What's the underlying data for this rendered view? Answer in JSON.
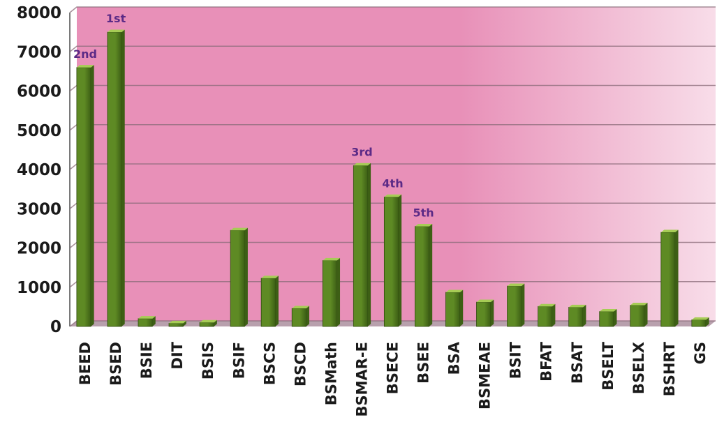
{
  "chart_data": {
    "type": "bar",
    "title": "",
    "xlabel": "",
    "ylabel": "",
    "ylim": [
      0,
      8000
    ],
    "yticks": [
      0,
      1000,
      2000,
      3000,
      4000,
      5000,
      6000,
      7000,
      8000
    ],
    "grid": true,
    "legend": "none",
    "categories": [
      "BEED",
      "BSED",
      "BSIE",
      "DIT",
      "BSIS",
      "BSIF",
      "BSCS",
      "BSCD",
      "BSMath",
      "BSMAR-E",
      "BSECE",
      "BSEE",
      "BSA",
      "BSMEAE",
      "BSIT",
      "BFAT",
      "BSAT",
      "BSELT",
      "BSELX",
      "BSHRT",
      "GS"
    ],
    "values": [
      6600,
      7500,
      200,
      80,
      100,
      2450,
      1230,
      460,
      1680,
      4100,
      3300,
      2550,
      870,
      620,
      1030,
      510,
      490,
      380,
      540,
      2400,
      170
    ],
    "annotations": [
      {
        "category": "BSED",
        "text": "1st"
      },
      {
        "category": "BEED",
        "text": "2nd"
      },
      {
        "category": "BSMAR-E",
        "text": "3rd"
      },
      {
        "category": "BSECE",
        "text": "4th"
      },
      {
        "category": "BSEE",
        "text": "5th"
      }
    ],
    "colors": {
      "bar_front": "#5e8a24",
      "bar_side": "#3d5f15",
      "bar_top": "#a6cc55",
      "background_pink": "#e890b8",
      "background_light": "#f8dde9",
      "gridline": "#8a6b78",
      "rank_text": "#5b2a86"
    }
  }
}
